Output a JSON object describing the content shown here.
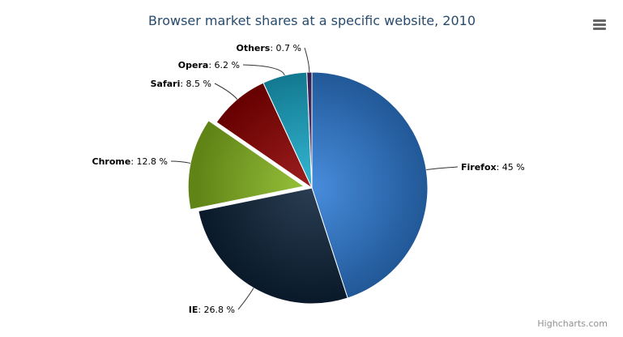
{
  "chart_data": {
    "type": "pie",
    "title": "Browser market shares at a specific website, 2010",
    "unit": "%",
    "slices": [
      {
        "name": "Firefox",
        "value": 45.0,
        "color": "#2f7ed8",
        "sliced": false
      },
      {
        "name": "IE",
        "value": 26.8,
        "color": "#0d233a",
        "sliced": false
      },
      {
        "name": "Chrome",
        "value": 12.8,
        "color": "#8bbc21",
        "sliced": true
      },
      {
        "name": "Safari",
        "value": 8.5,
        "color": "#910000",
        "sliced": false
      },
      {
        "name": "Opera",
        "value": 6.2,
        "color": "#1aadce",
        "sliced": false
      },
      {
        "name": "Others",
        "value": 0.7,
        "color": "#492970",
        "sliced": false
      }
    ],
    "label_values": [
      "45 %",
      "26.8 %",
      "12.8 %",
      "8.5 %",
      "6.2 %",
      "0.7 %"
    ]
  },
  "credits": "Highcharts.com",
  "menu_icon": "hamburger-menu-icon",
  "title_color": "#274b6d"
}
